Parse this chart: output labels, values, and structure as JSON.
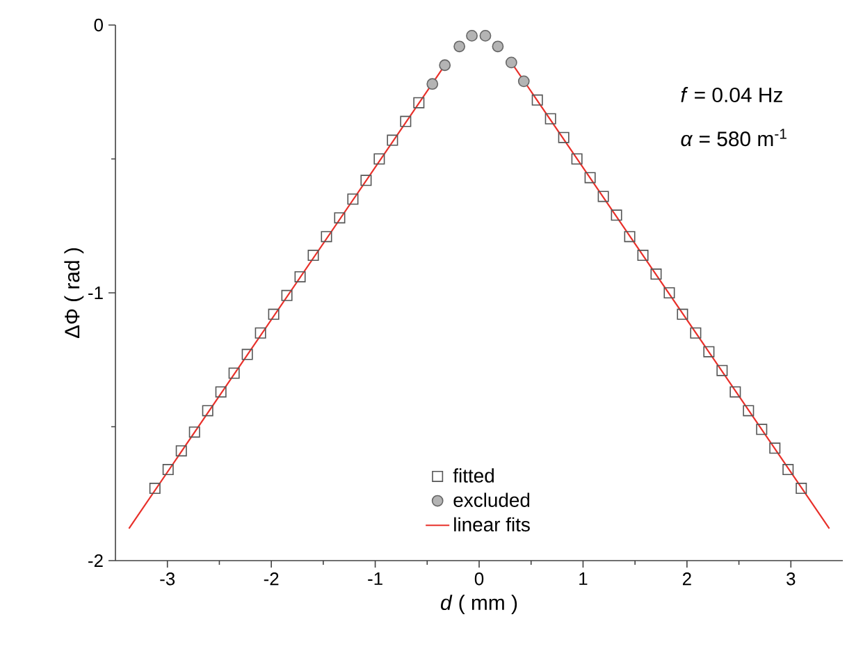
{
  "chart_data": {
    "type": "scatter",
    "xlabel": "*d* ( mm )",
    "ylabel": "ΔΦ ( rad )",
    "annotations": [
      "*f* = 0.04 Hz",
      "*α* = 580 m$^{-1}$"
    ],
    "xlim": [
      -3.5,
      3.5
    ],
    "ylim": [
      -2,
      0
    ],
    "xticks": [
      -3,
      -2,
      -1,
      0,
      1,
      2,
      3
    ],
    "yticks": [
      -2,
      -1,
      0
    ],
    "legend": "bottom",
    "series": [
      {
        "name": "fitted",
        "marker": "square",
        "color": "#555555",
        "x": [
          -3.12,
          -2.993,
          -2.866,
          -2.739,
          -2.612,
          -2.485,
          -2.358,
          -2.231,
          -2.104,
          -1.977,
          -1.85,
          -1.723,
          -1.596,
          -1.469,
          -1.342,
          -1.215,
          -1.088,
          -0.961,
          -0.834,
          -0.707,
          -0.58,
          0.56,
          0.687,
          0.814,
          0.941,
          1.068,
          1.195,
          1.322,
          1.449,
          1.576,
          1.703,
          1.83,
          1.957,
          2.084,
          2.211,
          2.338,
          2.465,
          2.592,
          2.719,
          2.846,
          2.973,
          3.1
        ],
        "values": [
          -1.73,
          -1.66,
          -1.59,
          -1.52,
          -1.44,
          -1.37,
          -1.3,
          -1.23,
          -1.15,
          -1.08,
          -1.01,
          -0.94,
          -0.86,
          -0.79,
          -0.72,
          -0.65,
          -0.58,
          -0.5,
          -0.43,
          -0.36,
          -0.29,
          -0.28,
          -0.35,
          -0.42,
          -0.5,
          -0.57,
          -0.64,
          -0.71,
          -0.79,
          -0.86,
          -0.93,
          -1.0,
          -1.08,
          -1.15,
          -1.22,
          -1.29,
          -1.37,
          -1.44,
          -1.51,
          -1.58,
          -1.66,
          -1.73
        ]
      },
      {
        "name": "excluded",
        "marker": "circle",
        "color": "#b4b4b4",
        "x": [
          -0.45,
          -0.33,
          -0.19,
          -0.07,
          0.06,
          0.18,
          0.31,
          0.43
        ],
        "values": [
          -0.22,
          -0.15,
          -0.08,
          -0.04,
          -0.04,
          -0.08,
          -0.14,
          -0.21
        ]
      },
      {
        "name": "linear fits",
        "type": "line",
        "marker": "none",
        "color": "#e8302a",
        "x": [
          -3.37,
          -0.33,
          0,
          0.31,
          3.37
        ],
        "values": [
          -1.88,
          -0.15,
          null,
          -0.14,
          -1.88
        ]
      }
    ]
  }
}
